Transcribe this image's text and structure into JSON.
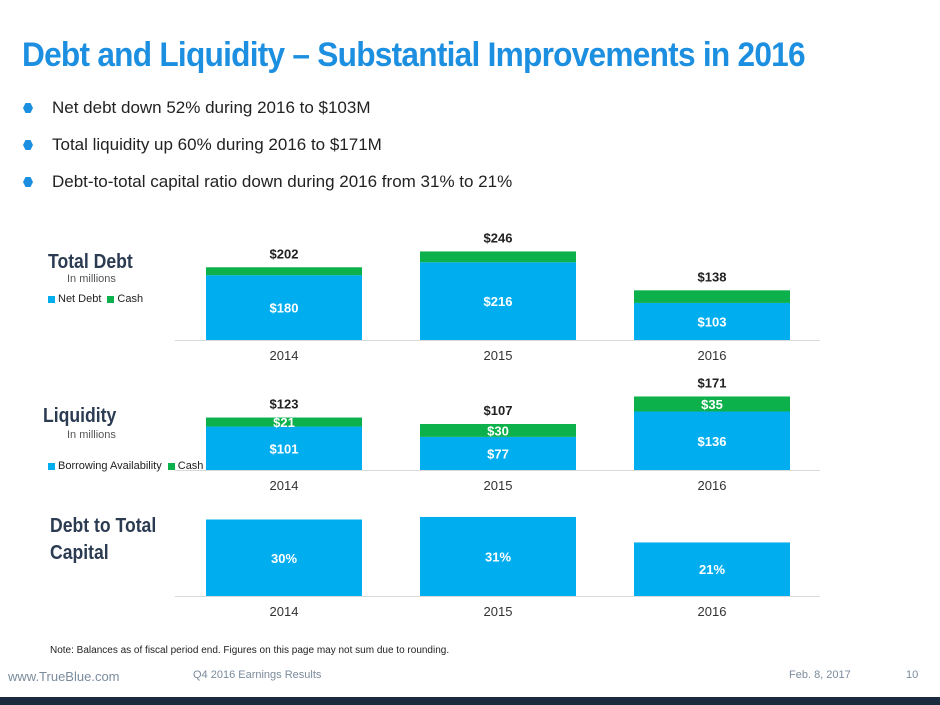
{
  "title": "Debt and Liquidity – Substantial Improvements in 2016",
  "bullets": [
    "Net debt down 52% during 2016 to $103M",
    "Total liquidity up 60% during 2016 to $171M",
    "Debt-to-total capital ratio down during 2016 from 31% to 21%"
  ],
  "colors": {
    "blue": "#00adef",
    "green": "#0db14b",
    "title": "#1d8fe0"
  },
  "total_debt": {
    "label": "Total Debt",
    "sub": "In millions",
    "legend": [
      "Net Debt",
      "Cash"
    ]
  },
  "liquidity": {
    "label": "Liquidity",
    "sub": "In millions",
    "legend": [
      "Borrowing Availability",
      "Cash"
    ]
  },
  "debt_capital": {
    "label_line1": "Debt to Total",
    "label_line2": "Capital"
  },
  "chart_data": [
    {
      "type": "bar",
      "stacked": true,
      "categories": [
        "2014",
        "2015",
        "2016"
      ],
      "series": [
        {
          "name": "Net Debt",
          "values": [
            180,
            216,
            103
          ],
          "labels": [
            "$180",
            "$216",
            "$103"
          ]
        },
        {
          "name": "Cash",
          "values": [
            22,
            30,
            35
          ],
          "labels": [
            "",
            "",
            ""
          ]
        }
      ],
      "totals": [
        "$202",
        "$246",
        "$138"
      ]
    },
    {
      "type": "bar",
      "stacked": true,
      "categories": [
        "2014",
        "2015",
        "2016"
      ],
      "series": [
        {
          "name": "Borrowing Availability",
          "values": [
            101,
            77,
            136
          ],
          "labels": [
            "$101",
            "$77",
            "$136"
          ]
        },
        {
          "name": "Cash",
          "values": [
            21,
            30,
            35
          ],
          "labels": [
            "$21",
            "$30",
            "$35"
          ]
        }
      ],
      "totals": [
        "$123",
        "$107",
        "$171"
      ]
    },
    {
      "type": "bar",
      "categories": [
        "2014",
        "2015",
        "2016"
      ],
      "values": [
        30,
        31,
        21
      ],
      "labels": [
        "30%",
        "31%",
        "21%"
      ]
    }
  ],
  "note": "Note: Balances as of fiscal period end. Figures on this page may not sum due to rounding.",
  "footer": {
    "url": "www.TrueBlue.com",
    "center": "Q4 2016 Earnings Results",
    "date": "Feb. 8, 2017",
    "page": "10"
  }
}
